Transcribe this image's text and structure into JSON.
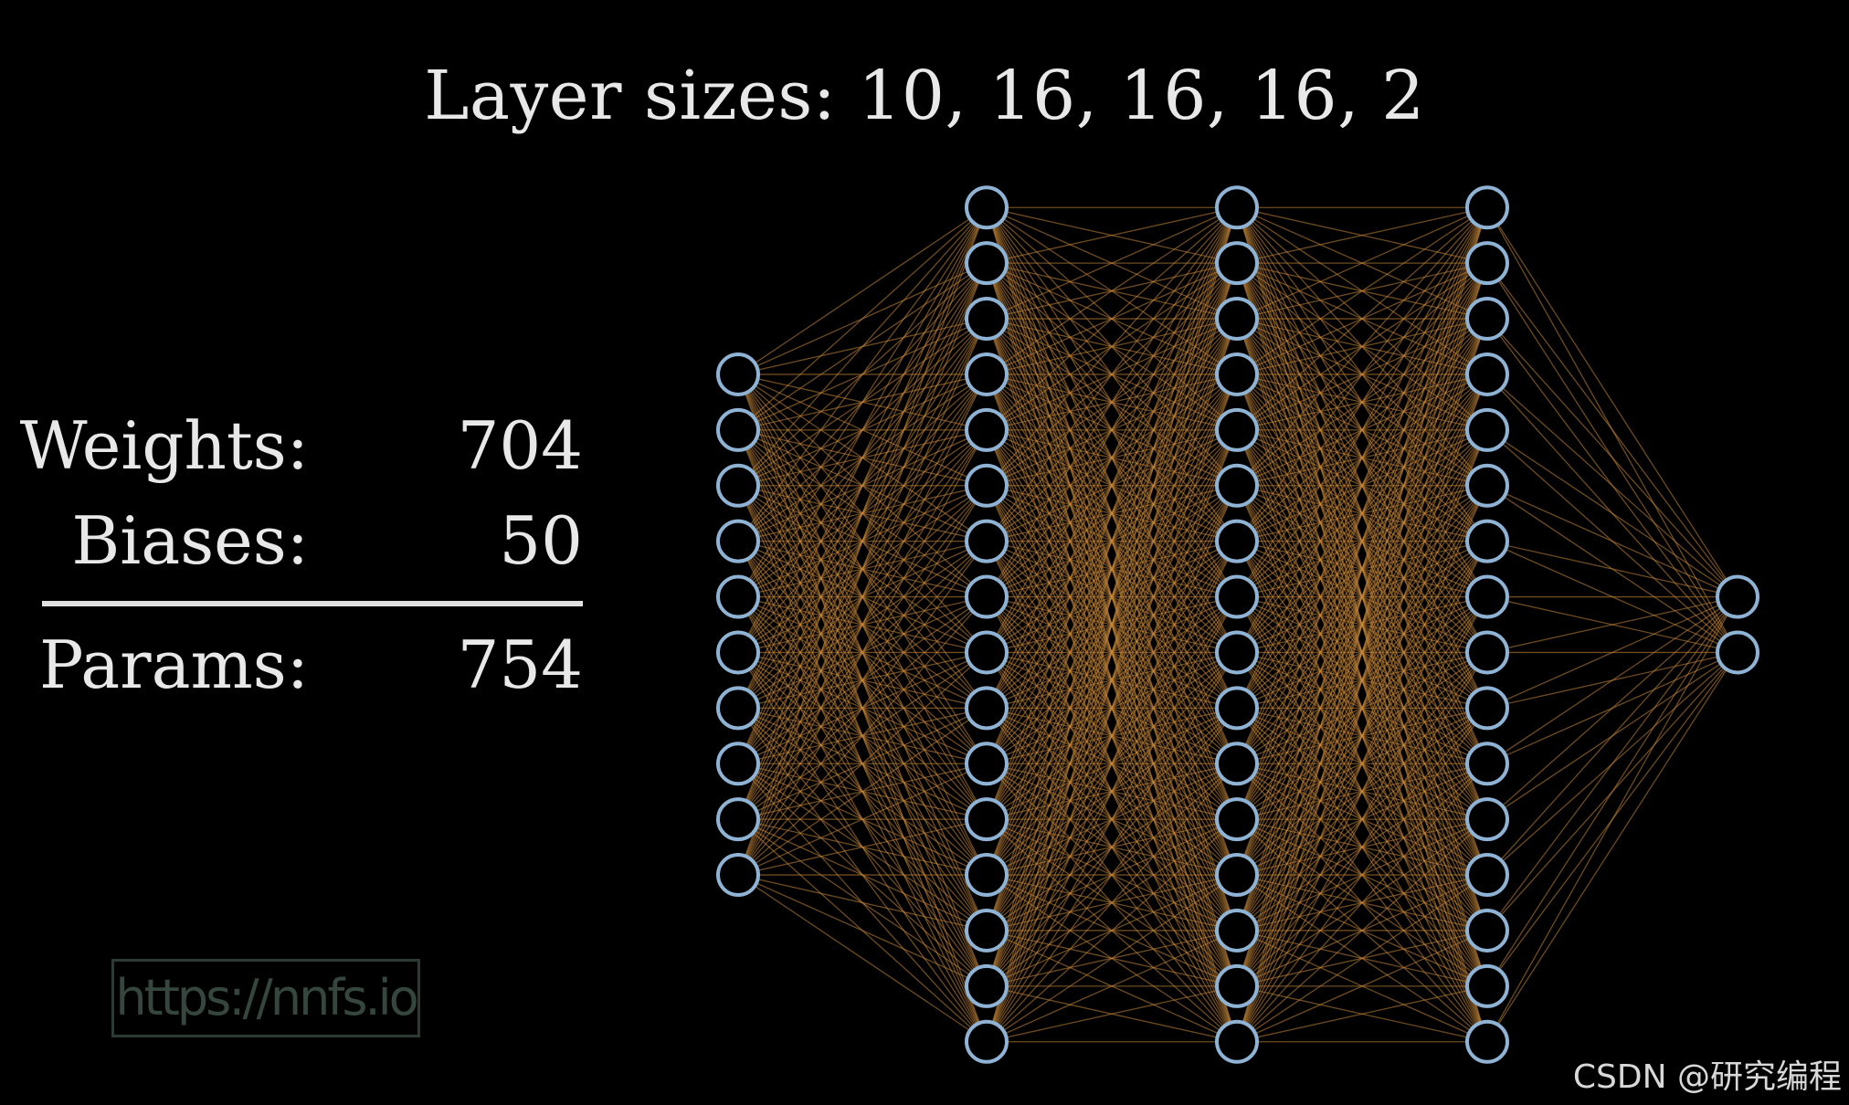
{
  "title": "Layer sizes: 10, 16, 16, 16, 2",
  "layer_sizes": [
    10,
    16,
    16,
    16,
    2
  ],
  "stats": {
    "weights_label": "Weights:",
    "weights_value": "704",
    "biases_label": "Biases:",
    "biases_value": "50",
    "params_label": "Params:",
    "params_value": "754"
  },
  "watermark": "https://nnfs.io",
  "credit": "CSDN @研究编程",
  "colors": {
    "background": "#000000",
    "node_stroke": "#8fb3d4",
    "edge": "#c8893a",
    "text": "#e8e8e8"
  }
}
